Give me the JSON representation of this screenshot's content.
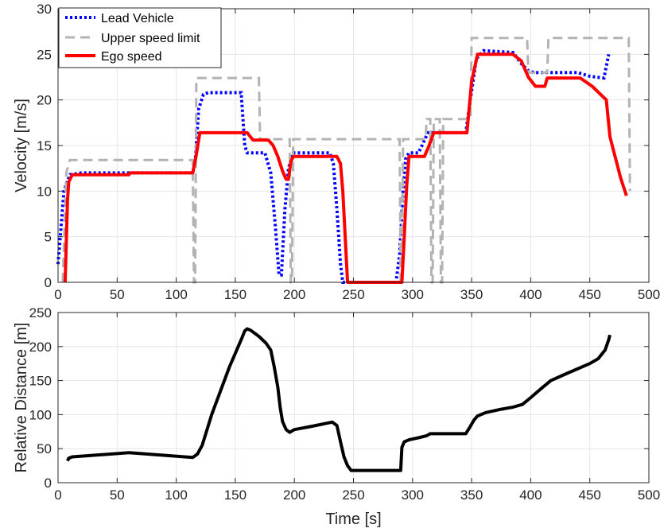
{
  "colors": {
    "lead": "#0000ff",
    "limit": "#b3b3b3",
    "ego": "#ff0000",
    "distance": "#000000"
  },
  "chart_data": [
    {
      "type": "line",
      "xlabel": "",
      "ylabel": "Velocity [m/s]",
      "xlim": [
        0,
        500
      ],
      "ylim": [
        0,
        30
      ],
      "xticks": [
        0,
        50,
        100,
        150,
        200,
        250,
        300,
        350,
        400,
        450,
        500
      ],
      "yticks": [
        0,
        5,
        10,
        15,
        20,
        25,
        30
      ],
      "grid": true,
      "legend": "top-left",
      "series": [
        {
          "name": "Lead Vehicle",
          "style": "dotted",
          "color": "#0000ff",
          "points": [
            [
              0,
              2
            ],
            [
              5,
              10
            ],
            [
              10,
              11.8
            ],
            [
              20,
              12
            ],
            [
              60,
              12
            ],
            [
              114,
              12
            ],
            [
              116,
              13
            ],
            [
              119,
              19
            ],
            [
              123,
              20.6
            ],
            [
              127,
              20.8
            ],
            [
              155,
              20.8
            ],
            [
              158,
              15
            ],
            [
              160,
              14.2
            ],
            [
              175,
              14.2
            ],
            [
              180,
              12
            ],
            [
              184,
              6
            ],
            [
              187,
              0.8
            ],
            [
              189,
              0.8
            ],
            [
              192,
              8
            ],
            [
              195,
              12.5
            ],
            [
              199,
              14.2
            ],
            [
              230,
              14.2
            ],
            [
              233,
              13
            ],
            [
              236,
              8
            ],
            [
              239,
              2
            ],
            [
              241,
              0
            ],
            [
              286,
              0
            ],
            [
              289,
              3
            ],
            [
              292,
              10
            ],
            [
              294,
              13.5
            ],
            [
              297,
              14.2
            ],
            [
              305,
              14.2
            ],
            [
              308,
              15
            ],
            [
              313,
              16.4
            ],
            [
              345,
              16.4
            ],
            [
              350,
              21
            ],
            [
              354,
              24.5
            ],
            [
              360,
              25.4
            ],
            [
              385,
              25.2
            ],
            [
              392,
              24
            ],
            [
              398,
              23.2
            ],
            [
              403,
              23
            ],
            [
              440,
              23
            ],
            [
              450,
              22.6
            ],
            [
              462,
              22.4
            ],
            [
              466,
              25
            ]
          ]
        },
        {
          "name": "Upper speed limit",
          "style": "dashed",
          "color": "#b3b3b3",
          "points": [
            [
              4,
              0
            ],
            [
              7,
              12
            ],
            [
              10,
              13.4
            ],
            [
              114,
              13.4
            ],
            [
              115,
              0
            ],
            [
              116,
              0
            ],
            [
              117,
              22.4
            ],
            [
              170,
              22.4
            ],
            [
              171,
              15.7
            ],
            [
              196,
              15.7
            ],
            [
              197,
              0
            ],
            [
              198,
              0
            ],
            [
              199,
              15.7
            ],
            [
              289,
              15.7
            ],
            [
              290,
              0
            ],
            [
              291,
              0
            ],
            [
              292,
              15.7
            ],
            [
              311,
              15.7
            ],
            [
              312,
              17.9
            ],
            [
              315,
              17.9
            ],
            [
              316,
              0
            ],
            [
              317,
              0
            ],
            [
              318,
              17.9
            ],
            [
              323,
              17.9
            ],
            [
              324,
              0
            ],
            [
              325,
              0
            ],
            [
              326,
              17.9
            ],
            [
              349,
              17.9
            ],
            [
              350,
              26.8
            ],
            [
              397,
              26.8
            ],
            [
              398,
              23
            ],
            [
              414,
              23
            ],
            [
              415,
              26.8
            ],
            [
              483,
              26.8
            ],
            [
              484,
              10
            ]
          ]
        },
        {
          "name": "Ego speed",
          "style": "solid",
          "color": "#ff0000",
          "points": [
            [
              6,
              0
            ],
            [
              8,
              9
            ],
            [
              9,
              11
            ],
            [
              12,
              11.8
            ],
            [
              60,
              11.8
            ],
            [
              61,
              12
            ],
            [
              114,
              12
            ],
            [
              117,
              14
            ],
            [
              120,
              16.4
            ],
            [
              160,
              16.4
            ],
            [
              165,
              15.6
            ],
            [
              178,
              15.6
            ],
            [
              182,
              15
            ],
            [
              186,
              13.8
            ],
            [
              190,
              12.2
            ],
            [
              193,
              11.3
            ],
            [
              195,
              11.3
            ],
            [
              197,
              13.2
            ],
            [
              199,
              13.8
            ],
            [
              236,
              13.8
            ],
            [
              239,
              13
            ],
            [
              241,
              10
            ],
            [
              243,
              5
            ],
            [
              245,
              0
            ],
            [
              291,
              0
            ],
            [
              293,
              5
            ],
            [
              295,
              10.5
            ],
            [
              297,
              13.8
            ],
            [
              310,
              13.8
            ],
            [
              314,
              15
            ],
            [
              318,
              16.4
            ],
            [
              346,
              16.4
            ],
            [
              350,
              22
            ],
            [
              355,
              25
            ],
            [
              385,
              25
            ],
            [
              392,
              24.3
            ],
            [
              398,
              22.5
            ],
            [
              404,
              21.5
            ],
            [
              412,
              21.5
            ],
            [
              414,
              22.4
            ],
            [
              442,
              22.4
            ],
            [
              452,
              21.5
            ],
            [
              464,
              20
            ],
            [
              467,
              16
            ],
            [
              469,
              15
            ],
            [
              471,
              14
            ],
            [
              473,
              13
            ],
            [
              476,
              11.5
            ],
            [
              479,
              10.3
            ],
            [
              481,
              9.5
            ]
          ]
        }
      ]
    },
    {
      "type": "line",
      "xlabel": "Time [s]",
      "ylabel": "Relative Distance [m]",
      "xlim": [
        0,
        500
      ],
      "ylim": [
        0,
        250
      ],
      "xticks": [
        0,
        50,
        100,
        150,
        200,
        250,
        300,
        350,
        400,
        450,
        500
      ],
      "yticks": [
        0,
        50,
        100,
        150,
        200,
        250
      ],
      "grid": true,
      "series": [
        {
          "style": "solid",
          "color": "#000000",
          "points": [
            [
              8,
              32
            ],
            [
              9,
              36
            ],
            [
              12,
              38
            ],
            [
              60,
              44
            ],
            [
              114,
              37
            ],
            [
              118,
              42
            ],
            [
              122,
              55
            ],
            [
              130,
              100
            ],
            [
              145,
              170
            ],
            [
              155,
              210
            ],
            [
              158,
              223
            ],
            [
              160,
              226
            ],
            [
              163,
              224
            ],
            [
              170,
              215
            ],
            [
              176,
              205
            ],
            [
              180,
              195
            ],
            [
              183,
              170
            ],
            [
              186,
              140
            ],
            [
              188,
              110
            ],
            [
              190,
              90
            ],
            [
              193,
              78
            ],
            [
              196,
              74
            ],
            [
              200,
              78
            ],
            [
              215,
              83
            ],
            [
              232,
              89
            ],
            [
              236,
              84
            ],
            [
              239,
              60
            ],
            [
              242,
              38
            ],
            [
              245,
              25
            ],
            [
              248,
              18
            ],
            [
              290,
              18
            ],
            [
              291,
              52
            ],
            [
              293,
              60
            ],
            [
              297,
              63
            ],
            [
              305,
              66
            ],
            [
              312,
              69
            ],
            [
              315,
              72
            ],
            [
              345,
              72
            ],
            [
              348,
              80
            ],
            [
              352,
              92
            ],
            [
              355,
              98
            ],
            [
              362,
              103
            ],
            [
              375,
              108
            ],
            [
              385,
              111
            ],
            [
              393,
              115
            ],
            [
              400,
              125
            ],
            [
              410,
              140
            ],
            [
              417,
              150
            ],
            [
              430,
              160
            ],
            [
              450,
              175
            ],
            [
              457,
              182
            ],
            [
              463,
              195
            ],
            [
              466,
              210
            ],
            [
              467,
              217
            ]
          ]
        }
      ]
    }
  ]
}
